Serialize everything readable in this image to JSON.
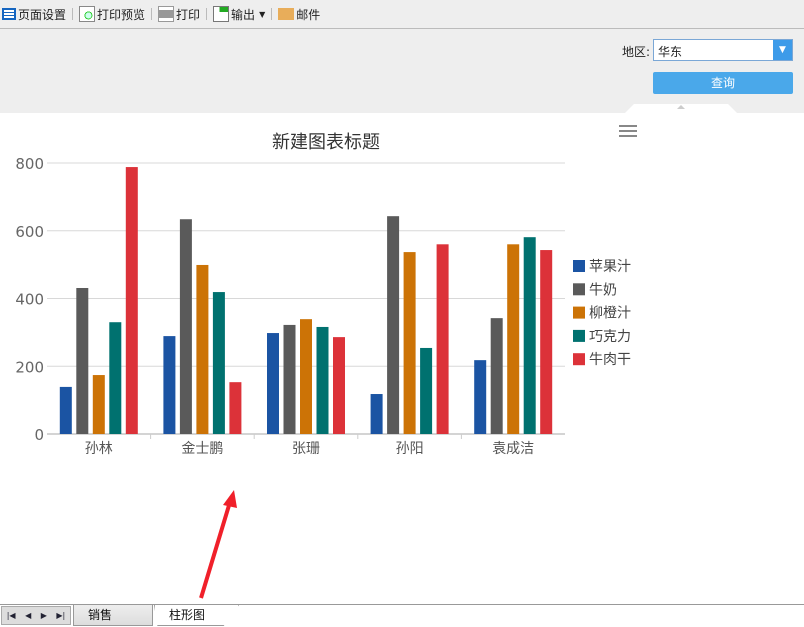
{
  "toolbar": {
    "items": [
      {
        "label": "页面设置",
        "icon": "page-setup-icon"
      },
      {
        "label": "打印预览",
        "icon": "print-preview-icon"
      },
      {
        "label": "打印",
        "icon": "printer-icon"
      },
      {
        "label": "输出",
        "icon": "export-icon"
      },
      {
        "label": "邮件",
        "icon": "mail-icon"
      }
    ]
  },
  "filter": {
    "region_label": "地区:",
    "region_value": "华东",
    "query_label": "查询"
  },
  "chart_data": {
    "type": "bar",
    "title": "新建图表标题",
    "categories": [
      "孙林",
      "金士鹏",
      "张珊",
      "孙阳",
      "袁成洁"
    ],
    "ylim": [
      0,
      800
    ],
    "yticks": [
      0,
      200,
      400,
      600,
      800
    ],
    "grid": true,
    "legend_position": "right",
    "series": [
      {
        "name": "苹果汁",
        "color": "#1b54a3",
        "values": [
          139,
          289,
          298,
          118,
          218
        ]
      },
      {
        "name": "牛奶",
        "color": "#5a5a5a",
        "values": [
          431,
          634,
          322,
          643,
          342
        ]
      },
      {
        "name": "柳橙汁",
        "color": "#cc7306",
        "values": [
          174,
          499,
          339,
          537,
          560
        ]
      },
      {
        "name": "巧克力",
        "color": "#00716f",
        "values": [
          330,
          419,
          316,
          254,
          581
        ]
      },
      {
        "name": "牛肉干",
        "color": "#dc3239",
        "values": [
          788,
          153,
          286,
          560,
          543
        ]
      }
    ]
  },
  "sheets": {
    "tabs": [
      "销售",
      "柱形图"
    ],
    "active": "柱形图",
    "nav": [
      "|◀",
      "◀",
      "▶",
      "▶|"
    ]
  }
}
